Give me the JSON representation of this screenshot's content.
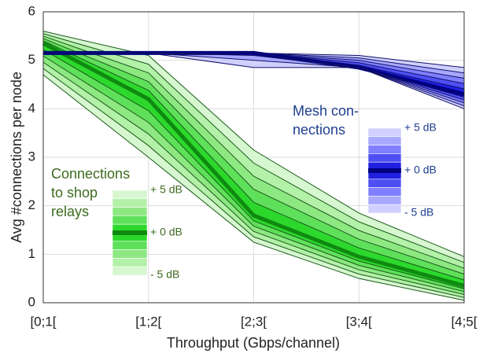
{
  "chart_data": {
    "type": "fan",
    "xlabel": "Throughput (Gbps/channel)",
    "ylabel": "Avg #connections per node",
    "categories": [
      "[0;1[",
      "[1;2[",
      "[2;3[",
      "[3;4[",
      "[4;5["
    ],
    "ylim": [
      0,
      6
    ],
    "yticks": [
      0,
      1,
      2,
      3,
      4,
      5,
      6
    ],
    "grid": true,
    "fans": [
      {
        "label_lines": [
          "Connections",
          "to shop",
          "relays"
        ],
        "label_color": "#3d6b1f",
        "legend_labels": [
          "+ 5 dB",
          "+ 0 dB",
          "- 5 dB"
        ],
        "band_colors": [
          "#d6f7cf",
          "#b3f0a8",
          "#8ee882",
          "#5fe05a",
          "#2dd82d",
          "#2dd82d",
          "#5fe05a",
          "#8ee882",
          "#b3f0a8",
          "#d6f7cf"
        ],
        "line_color": "#1a5a1a",
        "center_color": "#0f8a10",
        "lines": [
          [
            5.6,
            5.1,
            3.15,
            1.85,
            0.95
          ],
          [
            5.55,
            4.92,
            2.88,
            1.67,
            0.83
          ],
          [
            5.5,
            4.74,
            2.61,
            1.49,
            0.71
          ],
          [
            5.45,
            4.56,
            2.34,
            1.31,
            0.59
          ],
          [
            5.4,
            4.38,
            2.07,
            1.13,
            0.47
          ],
          [
            5.35,
            4.2,
            1.8,
            0.95,
            0.35
          ],
          [
            5.22,
            3.96,
            1.69,
            0.86,
            0.29
          ],
          [
            5.09,
            3.72,
            1.58,
            0.77,
            0.23
          ],
          [
            4.96,
            3.48,
            1.47,
            0.68,
            0.17
          ],
          [
            4.83,
            3.24,
            1.36,
            0.59,
            0.11
          ],
          [
            4.7,
            3.0,
            1.25,
            0.5,
            0.05
          ]
        ]
      },
      {
        "label_lines": [
          "Mesh con-",
          "nections"
        ],
        "label_color": "#1f3f8f",
        "legend_labels": [
          "+ 5 dB",
          "+ 0 dB",
          "- 5 dB"
        ],
        "band_colors": [
          "#d0d0ff",
          "#a8a8ff",
          "#7f7fff",
          "#4f4ff5",
          "#2020e0",
          "#2020e0",
          "#4f4ff5",
          "#7f7fff",
          "#a8a8ff",
          "#d0d0ff"
        ],
        "line_color": "#10106a",
        "center_color": "#000080",
        "lines": [
          [
            5.15,
            5.15,
            5.15,
            5.1,
            4.85
          ],
          [
            5.15,
            5.15,
            5.15,
            5.05,
            4.74
          ],
          [
            5.15,
            5.15,
            5.15,
            5.0,
            4.63
          ],
          [
            5.15,
            5.15,
            5.15,
            4.95,
            4.52
          ],
          [
            5.15,
            5.15,
            5.15,
            4.9,
            4.41
          ],
          [
            5.15,
            5.15,
            5.15,
            4.85,
            4.3
          ],
          [
            5.15,
            5.15,
            5.15,
            4.85,
            4.24
          ],
          [
            5.15,
            5.15,
            5.15,
            4.85,
            4.18
          ],
          [
            5.15,
            5.15,
            5.1,
            4.85,
            4.12
          ],
          [
            5.15,
            5.15,
            5.0,
            4.85,
            4.06
          ],
          [
            5.15,
            5.15,
            4.85,
            4.85,
            4.0
          ]
        ]
      }
    ]
  }
}
